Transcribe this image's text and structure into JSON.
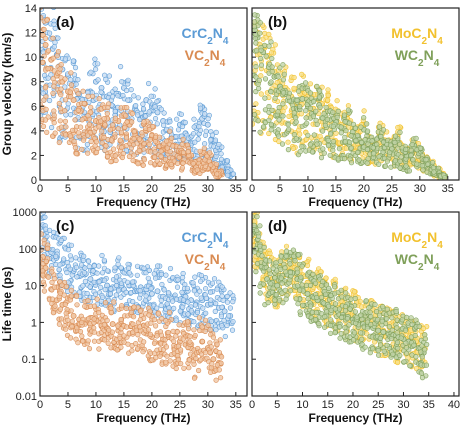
{
  "figure": {
    "chart_data": [
      {
        "panel": "(a)",
        "type": "scatter",
        "xlabel": "Frequency (THz)",
        "ylabel": "Group velocity (km/s)",
        "xlim": [
          0,
          37
        ],
        "ylim": [
          0,
          14
        ],
        "xticks": [
          "0",
          "5",
          "10",
          "15",
          "20",
          "25",
          "30",
          "35"
        ],
        "yticks": [
          "0",
          "2",
          "4",
          "6",
          "8",
          "10",
          "12",
          "14"
        ],
        "legend_position": "top-right",
        "series": [
          {
            "name_main": "CrC",
            "name_sub1": "2",
            "name_mid": "N",
            "name_sub2": "4",
            "color": "#5b9bd5",
            "fill": "#c9ddf2",
            "x": [
              0.5,
              1,
              2,
              3,
              4,
              5,
              6,
              7,
              8,
              9,
              10,
              11,
              12,
              13,
              14,
              15,
              16,
              17,
              18,
              19,
              20,
              21,
              22,
              23,
              24,
              25,
              26,
              27,
              28,
              29,
              30,
              31,
              32,
              33,
              34
            ],
            "y": [
              13.2,
              12.8,
              11.5,
              10.2,
              9.0,
              8.5,
              7.8,
              7.0,
              6.5,
              7.2,
              8.0,
              7.5,
              6.8,
              6.0,
              7.0,
              7.5,
              6.5,
              5.8,
              5.0,
              6.5,
              6.0,
              5.5,
              4.8,
              4.0,
              3.5,
              4.5,
              3.8,
              3.0,
              4.2,
              5.0,
              4.5,
              3.2,
              2.5,
              1.5,
              0.8
            ]
          },
          {
            "name_main": "VC",
            "name_sub1": "2",
            "name_mid": "N",
            "name_sub2": "4",
            "color": "#d98b52",
            "fill": "#f0c7a5",
            "x": [
              0.5,
              1,
              2,
              3,
              4,
              5,
              6,
              7,
              8,
              9,
              10,
              11,
              12,
              13,
              14,
              15,
              16,
              17,
              18,
              19,
              20,
              21,
              22,
              23,
              24,
              25,
              26,
              27,
              28,
              29,
              30,
              31,
              32
            ],
            "y": [
              11.8,
              11.0,
              9.8,
              8.5,
              8.0,
              7.2,
              6.5,
              5.8,
              6.2,
              5.5,
              4.8,
              5.8,
              5.0,
              4.2,
              4.8,
              5.2,
              4.5,
              3.8,
              3.2,
              4.0,
              3.5,
              3.0,
              2.5,
              3.2,
              2.8,
              2.2,
              2.8,
              2.0,
              1.5,
              2.2,
              1.8,
              1.2,
              0.6
            ]
          }
        ]
      },
      {
        "panel": "(b)",
        "type": "scatter",
        "xlabel": "Frequency (THz)",
        "ylabel": "",
        "xlim": [
          0,
          37
        ],
        "ylim": [
          0,
          14
        ],
        "xticks": [
          "0",
          "5",
          "10",
          "15",
          "20",
          "25",
          "30",
          "35"
        ],
        "yticks": [],
        "legend_position": "top-right",
        "series": [
          {
            "name_main": "MoC",
            "name_sub1": "2",
            "name_mid": "N",
            "name_sub2": "4",
            "color": "#f2c12e",
            "fill": "#f7e08a",
            "x": [
              0.5,
              1,
              2,
              3,
              4,
              5,
              6,
              7,
              8,
              9,
              10,
              11,
              12,
              13,
              14,
              15,
              16,
              17,
              18,
              19,
              20,
              21,
              22,
              23,
              24,
              25,
              26,
              27,
              28,
              29,
              30,
              31,
              32,
              33,
              34
            ],
            "y": [
              12.5,
              12.0,
              10.8,
              9.5,
              8.8,
              8.0,
              7.5,
              6.8,
              6.2,
              7.0,
              6.4,
              5.8,
              6.5,
              5.5,
              6.0,
              5.2,
              4.5,
              5.0,
              4.2,
              3.8,
              4.5,
              3.5,
              3.0,
              3.8,
              3.2,
              2.8,
              3.5,
              2.6,
              2.2,
              3.0,
              2.4,
              1.8,
              1.4,
              0.9,
              0.5
            ]
          },
          {
            "name_main": "WC",
            "name_sub1": "2",
            "name_mid": "N",
            "name_sub2": "4",
            "color": "#7fa05a",
            "fill": "#c0d3a8",
            "x": [
              0.5,
              1,
              2,
              3,
              4,
              5,
              6,
              7,
              8,
              9,
              10,
              11,
              12,
              13,
              14,
              15,
              16,
              17,
              18,
              19,
              20,
              21,
              22,
              23,
              24,
              25,
              26,
              27,
              28,
              29,
              30,
              31,
              32,
              33,
              34
            ],
            "y": [
              12.2,
              11.6,
              10.4,
              9.2,
              8.4,
              7.6,
              7.0,
              6.4,
              5.8,
              6.6,
              6.0,
              5.4,
              6.1,
              5.1,
              5.6,
              4.8,
              4.2,
              4.7,
              3.9,
              3.5,
              4.1,
              3.2,
              2.8,
              3.5,
              3.0,
              2.5,
              3.2,
              2.4,
              2.0,
              2.8,
              2.2,
              1.6,
              1.2,
              0.8,
              0.4
            ]
          }
        ]
      },
      {
        "panel": "(c)",
        "type": "scatter",
        "xlabel": "Frequency (THz)",
        "ylabel": "Life time (ps)",
        "xscale": "log-y",
        "xlim": [
          0,
          37
        ],
        "ylim": [
          0.01,
          1000
        ],
        "xticks": [
          "0",
          "5",
          "10",
          "15",
          "20",
          "25",
          "30",
          "35"
        ],
        "yticks": [
          "0.01",
          "0.1",
          "1",
          "10",
          "100",
          "1000"
        ],
        "legend_position": "top-right",
        "series": [
          {
            "name_main": "CrC",
            "name_sub1": "2",
            "name_mid": "N",
            "name_sub2": "4",
            "color": "#5b9bd5",
            "fill": "#c9ddf2",
            "x": [
              0.5,
              1,
              2,
              3,
              4,
              5,
              6,
              7,
              8,
              9,
              10,
              11,
              12,
              13,
              14,
              15,
              16,
              17,
              18,
              19,
              20,
              21,
              22,
              23,
              24,
              25,
              26,
              27,
              28,
              29,
              30,
              31,
              32,
              33,
              34
            ],
            "y": [
              400,
              200,
              90,
              60,
              40,
              30,
              25,
              18,
              20,
              15,
              12,
              14,
              10,
              9,
              12,
              8,
              10,
              7,
              9,
              8,
              6,
              7,
              5,
              6,
              5,
              4,
              5,
              4,
              3.5,
              4,
              3,
              3.5,
              2.5,
              2,
              1.5
            ]
          },
          {
            "name_main": "VC",
            "name_sub1": "2",
            "name_mid": "N",
            "name_sub2": "4",
            "color": "#d98b52",
            "fill": "#f0c7a5",
            "x": [
              0.5,
              1,
              2,
              3,
              4,
              5,
              6,
              7,
              8,
              9,
              10,
              11,
              12,
              13,
              14,
              15,
              16,
              17,
              18,
              19,
              20,
              21,
              22,
              23,
              24,
              25,
              26,
              27,
              28,
              29,
              30,
              31,
              32
            ],
            "y": [
              60,
              30,
              8,
              4,
              3,
              2,
              1.5,
              1.2,
              1,
              0.9,
              1.1,
              0.8,
              0.7,
              0.9,
              0.6,
              0.8,
              0.5,
              0.7,
              0.6,
              0.5,
              0.4,
              0.5,
              0.35,
              0.4,
              0.2,
              0.3,
              0.25,
              0.2,
              0.15,
              0.3,
              0.2,
              0.1,
              0.08
            ]
          }
        ]
      },
      {
        "panel": "(d)",
        "type": "scatter",
        "xlabel": "Frequency (THz)",
        "ylabel": "",
        "xscale": "log-y",
        "xlim": [
          0,
          41
        ],
        "ylim": [
          0.01,
          1000
        ],
        "xticks": [
          "0",
          "5",
          "10",
          "15",
          "20",
          "25",
          "30",
          "35",
          "40"
        ],
        "yticks": [],
        "legend_position": "top-right",
        "series": [
          {
            "name_main": "MoC",
            "name_sub1": "2",
            "name_mid": "N",
            "name_sub2": "4",
            "color": "#f2c12e",
            "fill": "#f7e08a",
            "x": [
              0.5,
              1,
              2,
              3,
              4,
              5,
              6,
              7,
              8,
              9,
              10,
              11,
              12,
              13,
              14,
              15,
              16,
              17,
              18,
              19,
              20,
              21,
              22,
              23,
              24,
              25,
              26,
              27,
              28,
              29,
              30,
              31,
              32,
              33,
              34
            ],
            "y": [
              500,
              150,
              40,
              20,
              15,
              12,
              18,
              25,
              30,
              20,
              10,
              12,
              8,
              6,
              5,
              4,
              3,
              2.5,
              2,
              1.8,
              1.5,
              1.2,
              1,
              0.9,
              0.8,
              0.7,
              0.6,
              0.5,
              0.5,
              0.4,
              0.4,
              0.3,
              0.3,
              0.2,
              0.2
            ]
          },
          {
            "name_main": "WC",
            "name_sub1": "2",
            "name_mid": "N",
            "name_sub2": "4",
            "color": "#7fa05a",
            "fill": "#c0d3a8",
            "x": [
              0.5,
              1,
              2,
              3,
              4,
              5,
              6,
              7,
              8,
              9,
              10,
              11,
              12,
              13,
              14,
              15,
              16,
              17,
              18,
              19,
              20,
              21,
              22,
              23,
              24,
              25,
              26,
              27,
              28,
              29,
              30,
              31,
              32,
              33,
              34
            ],
            "y": [
              300,
              100,
              30,
              15,
              12,
              10,
              14,
              20,
              22,
              15,
              8,
              6,
              5,
              4,
              3.5,
              3,
              2.5,
              2,
              1.6,
              1.4,
              1.2,
              1,
              0.9,
              0.8,
              0.7,
              0.6,
              0.55,
              0.5,
              0.45,
              0.4,
              0.35,
              0.3,
              0.25,
              0.2,
              0.15
            ]
          }
        ]
      }
    ]
  }
}
